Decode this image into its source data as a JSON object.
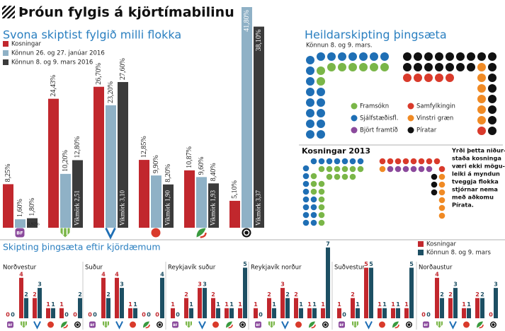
{
  "header": {
    "title": "Þróun fylgis á kjörtímabilinu"
  },
  "chart_data": [
    {
      "type": "bar",
      "title": "Svona skiptist fylgið milli flokka",
      "logo_text": "BF",
      "series": [
        {
          "name": "Kosningar",
          "color": "#c1272d",
          "values": [
            8.25,
            24.43,
            26.7,
            12.85,
            10.87,
            5.1
          ],
          "value_labels": [
            "8,25%",
            "24,43%",
            "26,70%",
            "12,85%",
            "10,87%",
            "5,10%"
          ]
        },
        {
          "name": "Könnun 26. og 27. janúar 2016",
          "color": "#8fb1c6",
          "values": [
            1.6,
            10.2,
            23.2,
            9.9,
            9.6,
            41.8
          ],
          "value_labels": [
            "1,60%",
            "10,20%",
            "23,20%",
            "9,90%",
            "9,60%",
            "41,80%"
          ]
        },
        {
          "name": "Könnun 8. og 9. mars 2016",
          "color": "#3b3b3b",
          "values": [
            1.8,
            12.8,
            27.6,
            8.2,
            8.4,
            38.1
          ],
          "value_labels": [
            "1,80%",
            "12,80%",
            "27,60%",
            "8,20%",
            "8,40%",
            "38,10%"
          ]
        }
      ],
      "annotations": [
        "0,92%",
        "Vikmörk 2,51",
        "Vikmörk 3,10",
        "Vikmörk 1,90",
        "Vikmörk 1,93",
        "Vikmörk 3,37"
      ]
    },
    {
      "type": "bar",
      "title": "Skipting þingsæta eftir kjördæmum",
      "series": [
        {
          "name": "Kosningar",
          "color": "#c1272d"
        },
        {
          "name": "Könnun 8. og 9. mars",
          "color": "#1d4f63"
        }
      ],
      "panels": [
        {
          "title": "Norðvestur",
          "series": [
            {
              "values": [
                0,
                4,
                2,
                1,
                1,
                0
              ]
            },
            {
              "values": [
                0,
                2,
                3,
                1,
                0,
                2
              ]
            }
          ]
        },
        {
          "title": "Suður",
          "series": [
            {
              "values": [
                0,
                4,
                4,
                1,
                0,
                0
              ]
            },
            {
              "values": [
                0,
                2,
                3,
                1,
                0,
                4
              ]
            }
          ]
        },
        {
          "title": "Reykjavík suður",
          "series": [
            {
              "values": [
                1,
                2,
                3,
                2,
                1,
                1
              ]
            },
            {
              "values": [
                0,
                1,
                3,
                1,
                1,
                5
              ]
            }
          ]
        },
        {
          "title": "Reykjavík norður",
          "series": [
            {
              "values": [
                1,
                2,
                3,
                2,
                1,
                1
              ]
            },
            {
              "values": [
                0,
                1,
                2,
                1,
                1,
                7
              ]
            }
          ]
        },
        {
          "title": "Suðvestur",
          "series": [
            {
              "values": [
                1,
                2,
                5,
                1,
                1,
                1
              ]
            },
            {
              "values": [
                0,
                1,
                5,
                1,
                1,
                5
              ]
            }
          ]
        },
        {
          "title": "Norðaustur",
          "series": [
            {
              "values": [
                0,
                4,
                2,
                1,
                2,
                0
              ]
            },
            {
              "values": [
                0,
                2,
                3,
                1,
                2,
                3
              ]
            }
          ]
        }
      ]
    }
  ],
  "seat_diagrams": [
    {
      "title": "Heildarskipting þingsæta",
      "subtitle": "Könnun 8. og 9. mars.",
      "parties": [
        {
          "name": "Framsókn",
          "color": "#7ab648",
          "seats": 8
        },
        {
          "name": "Sjálfstæðisfl.",
          "color": "#1f6fb5",
          "seats": 20
        },
        {
          "name": "Björt framtíð",
          "color": "#8b4a9c",
          "seats": 0
        },
        {
          "name": "Samfylkingin",
          "color": "#d93a2b",
          "seats": 6
        },
        {
          "name": "Vinstri græn",
          "color": "#f08a24",
          "seats": 6
        },
        {
          "name": "Píratar",
          "color": "#111111",
          "seats": 23
        }
      ]
    },
    {
      "title": "Kosningar 2013",
      "parties": [
        {
          "color": "#7ab648",
          "seats": 19
        },
        {
          "color": "#1f6fb5",
          "seats": 19
        },
        {
          "color": "#8b4a9c",
          "seats": 6
        },
        {
          "color": "#d93a2b",
          "seats": 9
        },
        {
          "color": "#f08a24",
          "seats": 7
        },
        {
          "color": "#111111",
          "seats": 3
        }
      ],
      "note": [
        "Yrði þetta niður-",
        "staða kosninga",
        "væri ekki mögu-",
        "leiki á myndun",
        "tveggja flokka",
        "stjórnar nema",
        "með aðkomu",
        "Pírata."
      ]
    }
  ]
}
